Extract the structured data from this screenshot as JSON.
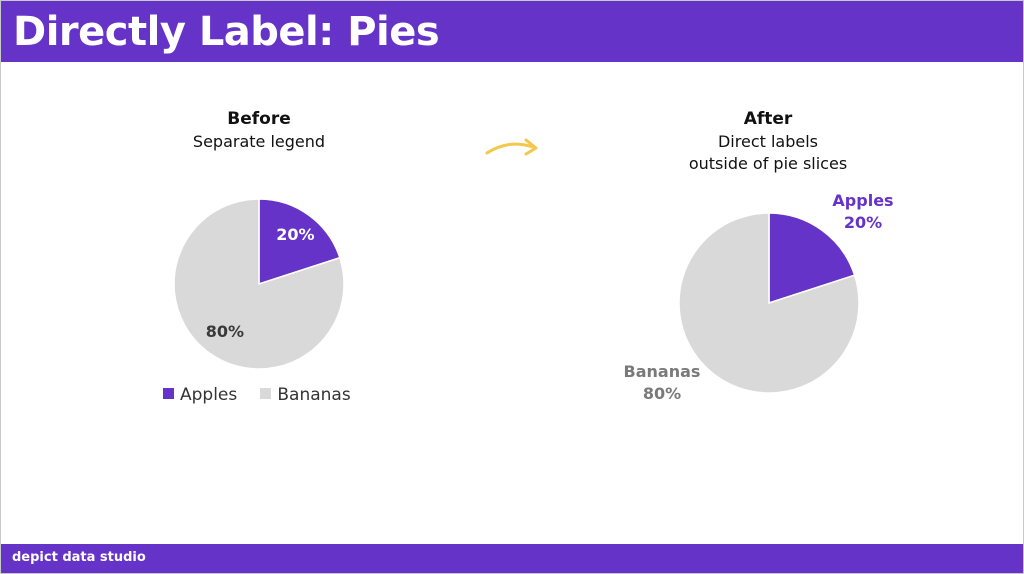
{
  "header": {
    "title": "Directly Label: Pies"
  },
  "footer": {
    "brand": "depict data studio"
  },
  "colors": {
    "brand_purple": "#6633c9",
    "apples": "#6633c9",
    "bananas": "#d9d9d9",
    "bananas_label": "#7a7a7a",
    "arrow": "#f2c94c"
  },
  "before": {
    "heading": "Before",
    "subheading": "Separate legend"
  },
  "after": {
    "heading": "After",
    "subheading_line1": "Direct labels",
    "subheading_line2": "outside of pie slices"
  },
  "arrow": {
    "icon": "curved-arrow-icon"
  },
  "chart_data": [
    {
      "type": "pie",
      "categories": [
        "Apples",
        "Bananas"
      ],
      "values": [
        20,
        80
      ],
      "value_labels": [
        "20%",
        "80%"
      ],
      "legend": "bottom",
      "legend_entries": [
        "Apples",
        "Bananas"
      ]
    },
    {
      "type": "pie",
      "categories": [
        "Apples",
        "Bananas"
      ],
      "values": [
        20,
        80
      ],
      "value_labels": [
        "20%",
        "80%"
      ],
      "legend": "none",
      "direct_labels": [
        {
          "name": "Apples",
          "value": "20%"
        },
        {
          "name": "Bananas",
          "value": "80%"
        }
      ]
    }
  ]
}
